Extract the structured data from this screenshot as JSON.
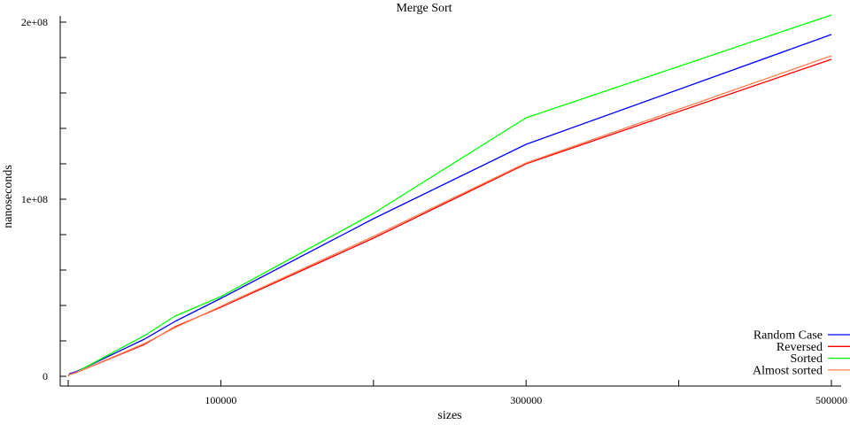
{
  "chart_data": {
    "type": "line",
    "title": "Merge Sort",
    "xlabel": "sizes",
    "ylabel": "nanoseconds",
    "xlim": [
      0,
      500000
    ],
    "ylim": [
      0,
      200000000
    ],
    "x_ticks": [
      {
        "value": 0,
        "label": ""
      },
      {
        "value": 100000,
        "label": "100000"
      },
      {
        "value": 200000,
        "label": ""
      },
      {
        "value": 300000,
        "label": "300000"
      },
      {
        "value": 400000,
        "label": ""
      },
      {
        "value": 500000,
        "label": "500000"
      }
    ],
    "y_ticks": [
      {
        "value": 0,
        "label": "0"
      },
      {
        "value": 20000000,
        "label": ""
      },
      {
        "value": 40000000,
        "label": ""
      },
      {
        "value": 60000000,
        "label": ""
      },
      {
        "value": 80000000,
        "label": ""
      },
      {
        "value": 100000000,
        "label": "1e+08"
      },
      {
        "value": 120000000,
        "label": ""
      },
      {
        "value": 140000000,
        "label": ""
      },
      {
        "value": 160000000,
        "label": ""
      },
      {
        "value": 180000000,
        "label": ""
      },
      {
        "value": 200000000,
        "label": "2e+08"
      }
    ],
    "grid": false,
    "legend_position": "bottom-right",
    "x": [
      100,
      1000,
      5000,
      10000,
      50000,
      70000,
      100000,
      200000,
      300000,
      500000
    ],
    "series": [
      {
        "name": "Random Case",
        "color": "#0000ff",
        "values": [
          150000,
          1500000,
          2500000,
          4500000,
          21000000,
          31000000,
          44000000,
          89000000,
          131000000,
          193000000
        ]
      },
      {
        "name": "Reversed",
        "color": "#ff0000",
        "values": [
          100000,
          1000000,
          2000000,
          3800000,
          18000000,
          28000000,
          39000000,
          78000000,
          120000000,
          179000000
        ]
      },
      {
        "name": "Sorted",
        "color": "#00ff00",
        "values": [
          100000,
          1000000,
          2000000,
          4500000,
          23000000,
          34000000,
          45000000,
          92000000,
          146000000,
          204000000
        ]
      },
      {
        "name": "Almost sorted",
        "color": "#ff7f50",
        "values": [
          100000,
          1000000,
          2000000,
          3800000,
          18500000,
          27500000,
          39500000,
          79000000,
          120500000,
          181000000
        ]
      }
    ]
  }
}
